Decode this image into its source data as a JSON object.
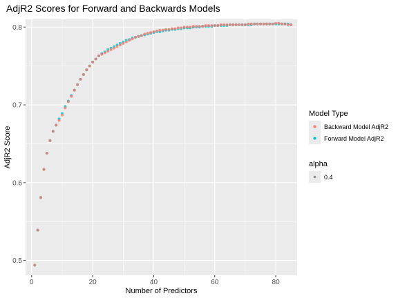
{
  "chart_data": {
    "type": "scatter",
    "title": "AdjR2 Scores for Forward and Backwards Models",
    "xlabel": "Number of Predictors",
    "ylabel": "AdjR2 Score",
    "xlim": [
      -2,
      87
    ],
    "ylim": [
      0.481,
      0.81
    ],
    "x_ticks": [
      0,
      20,
      40,
      60,
      80
    ],
    "y_ticks": [
      0.5,
      0.6,
      0.7,
      0.8
    ],
    "grid": true,
    "background": "#ebebeb",
    "legend_position": "right",
    "legend": {
      "title": "Model Type",
      "alpha_title": "alpha",
      "alpha_value": "0.4"
    },
    "series": [
      {
        "name": "Forward Model AdjR2",
        "color": "#00bfc4",
        "x": [
          1,
          2,
          3,
          4,
          5,
          6,
          7,
          8,
          9,
          10,
          11,
          12,
          13,
          14,
          15,
          16,
          17,
          18,
          19,
          20,
          21,
          22,
          23,
          24,
          25,
          26,
          27,
          28,
          29,
          30,
          31,
          32,
          33,
          34,
          35,
          36,
          37,
          38,
          39,
          40,
          41,
          42,
          43,
          44,
          45,
          46,
          47,
          48,
          49,
          50,
          51,
          52,
          53,
          54,
          55,
          56,
          57,
          58,
          59,
          60,
          61,
          62,
          63,
          64,
          65,
          66,
          67,
          68,
          69,
          70,
          71,
          72,
          73,
          74,
          75,
          76,
          77,
          78,
          79,
          80,
          81,
          82,
          83,
          84,
          85
        ],
        "values": [
          0.494,
          0.539,
          0.581,
          0.617,
          0.638,
          0.654,
          0.666,
          0.674,
          0.682,
          0.689,
          0.698,
          0.705,
          0.712,
          0.719,
          0.726,
          0.733,
          0.739,
          0.745,
          0.75,
          0.755,
          0.759,
          0.763,
          0.766,
          0.768,
          0.771,
          0.773,
          0.775,
          0.777,
          0.779,
          0.781,
          0.783,
          0.784,
          0.786,
          0.787,
          0.788,
          0.789,
          0.79,
          0.791,
          0.792,
          0.793,
          0.794,
          0.794,
          0.795,
          0.796,
          0.796,
          0.797,
          0.797,
          0.798,
          0.798,
          0.799,
          0.799,
          0.799,
          0.8,
          0.8,
          0.8,
          0.801,
          0.801,
          0.801,
          0.801,
          0.802,
          0.802,
          0.802,
          0.802,
          0.802,
          0.803,
          0.803,
          0.803,
          0.803,
          0.803,
          0.803,
          0.803,
          0.803,
          0.804,
          0.804,
          0.804,
          0.804,
          0.804,
          0.804,
          0.804,
          0.804,
          0.804,
          0.804,
          0.804,
          0.804,
          0.803
        ]
      },
      {
        "name": "Backward Model AdjR2",
        "color": "#f8766d",
        "x": [
          1,
          2,
          3,
          4,
          5,
          6,
          7,
          8,
          9,
          10,
          11,
          12,
          13,
          14,
          15,
          16,
          17,
          18,
          19,
          20,
          21,
          22,
          23,
          24,
          25,
          26,
          27,
          28,
          29,
          30,
          31,
          32,
          33,
          34,
          35,
          36,
          37,
          38,
          39,
          40,
          41,
          42,
          43,
          44,
          45,
          46,
          47,
          48,
          49,
          50,
          51,
          52,
          53,
          54,
          55,
          56,
          57,
          58,
          59,
          60,
          61,
          62,
          63,
          64,
          65,
          66,
          67,
          68,
          69,
          70,
          71,
          72,
          73,
          74,
          75,
          76,
          77,
          78,
          79,
          80,
          81,
          82,
          83,
          84,
          85
        ],
        "values": [
          0.494,
          0.539,
          0.581,
          0.617,
          0.638,
          0.654,
          0.666,
          0.674,
          0.68,
          0.687,
          0.696,
          0.704,
          0.711,
          0.719,
          0.726,
          0.733,
          0.739,
          0.745,
          0.75,
          0.755,
          0.759,
          0.763,
          0.765,
          0.767,
          0.769,
          0.771,
          0.773,
          0.775,
          0.777,
          0.779,
          0.781,
          0.783,
          0.785,
          0.787,
          0.788,
          0.789,
          0.791,
          0.792,
          0.793,
          0.794,
          0.795,
          0.796,
          0.796,
          0.797,
          0.797,
          0.798,
          0.798,
          0.799,
          0.799,
          0.8,
          0.8,
          0.8,
          0.801,
          0.801,
          0.801,
          0.801,
          0.802,
          0.802,
          0.802,
          0.802,
          0.802,
          0.803,
          0.803,
          0.803,
          0.803,
          0.803,
          0.803,
          0.803,
          0.803,
          0.803,
          0.804,
          0.804,
          0.804,
          0.804,
          0.804,
          0.804,
          0.804,
          0.804,
          0.804,
          0.805,
          0.805,
          0.804,
          0.804,
          0.803,
          0.803
        ]
      }
    ]
  }
}
